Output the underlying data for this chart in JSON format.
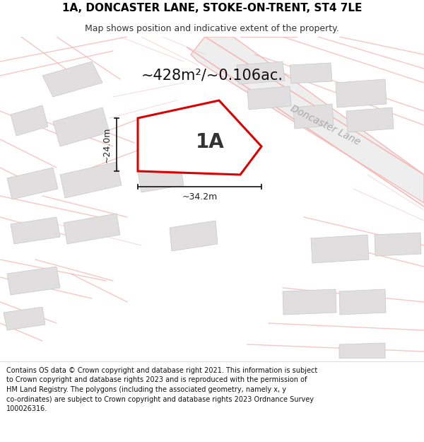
{
  "title_line1": "1A, DONCASTER LANE, STOKE-ON-TRENT, ST4 7LE",
  "title_line2": "Map shows position and indicative extent of the property.",
  "area_text": "~428m²/~0.106ac.",
  "label_1a": "1A",
  "road_label": "Doncaster Lane",
  "meas_width": "~34.2m",
  "meas_height": "~24.0m",
  "footer_lines": [
    "Contains OS data © Crown copyright and database right 2021. This information is subject",
    "to Crown copyright and database rights 2023 and is reproduced with the permission of",
    "HM Land Registry. The polygons (including the associated geometry, namely x, y",
    "co-ordinates) are subject to Crown copyright and database rights 2023 Ordnance Survey",
    "100026316."
  ],
  "map_bg": "#ffffff",
  "road_color": "#f5b8b8",
  "road_color2": "#f0c8c8",
  "building_color": "#e0dede",
  "building_edge": "#c8c8c8",
  "plot_color": "#dd0000",
  "doncaster_road_fill": "#e8e8e8",
  "title_fontsize": 11,
  "subtitle_fontsize": 9,
  "area_fontsize": 15,
  "label_fontsize": 20,
  "road_label_fontsize": 10,
  "meas_fontsize": 9,
  "footer_fontsize": 7
}
